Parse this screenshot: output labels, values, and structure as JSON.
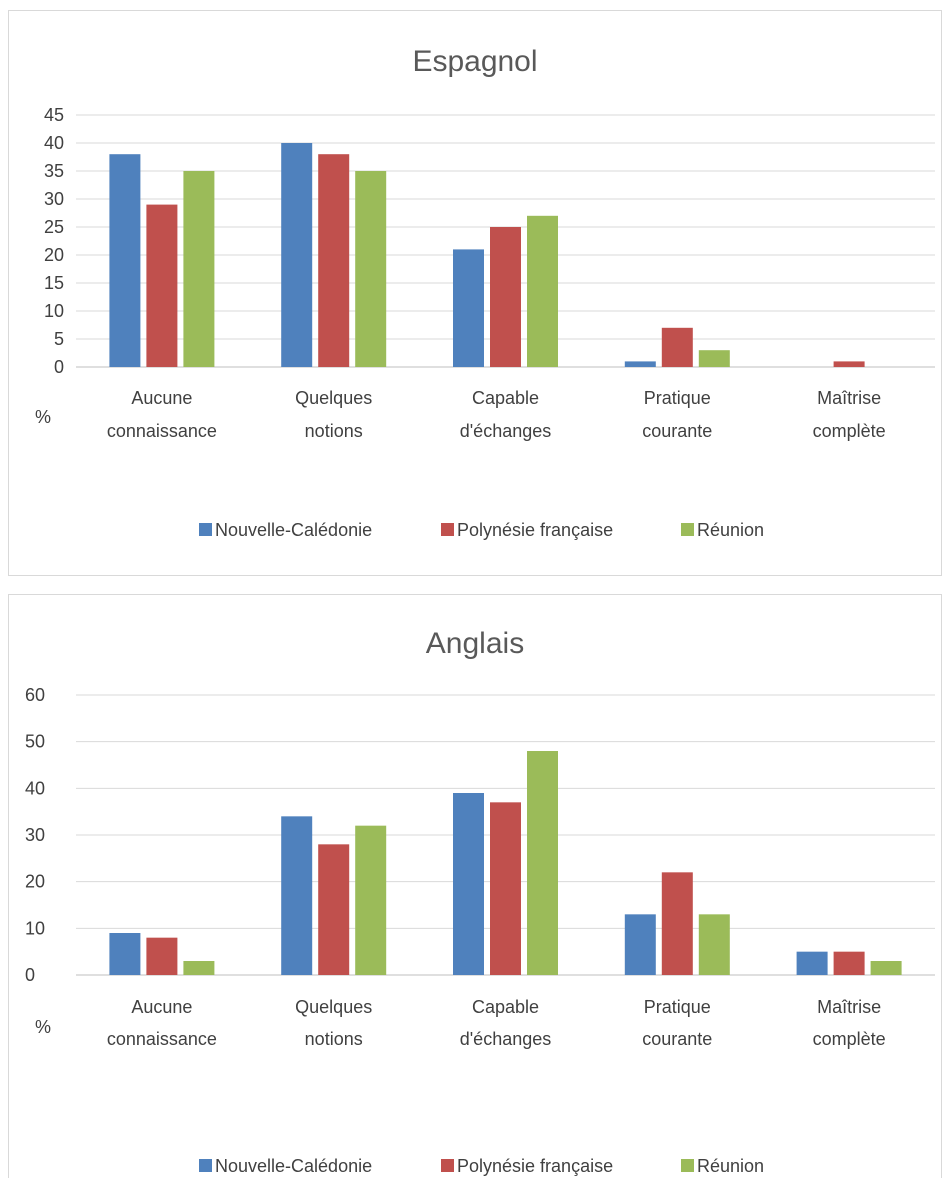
{
  "colors": {
    "series": [
      "#4f81bd",
      "#c0504d",
      "#9bbb59"
    ],
    "grid": "#d9d9d9",
    "axis": "#bfbfbf"
  },
  "chart_data": [
    {
      "type": "bar",
      "title": "Espagnol",
      "unit_label": "%",
      "categories": [
        [
          "Aucune",
          "connaissance"
        ],
        [
          "Quelques",
          "notions"
        ],
        [
          "Capable",
          "d'échanges"
        ],
        [
          "Pratique",
          "courante"
        ],
        [
          "Maîtrise",
          "complète"
        ]
      ],
      "series": [
        {
          "name": "Nouvelle-Calédonie",
          "values": [
            38,
            40,
            21,
            1,
            0
          ]
        },
        {
          "name": "Polynésie française",
          "values": [
            29,
            38,
            25,
            7,
            1
          ]
        },
        {
          "name": "Réunion",
          "values": [
            35,
            35,
            27,
            3,
            0
          ]
        }
      ],
      "ylim": [
        0,
        45
      ],
      "yticks": [
        0,
        5,
        10,
        15,
        20,
        25,
        30,
        35,
        40,
        45
      ],
      "grid": true,
      "legend": "bottom"
    },
    {
      "type": "bar",
      "title": "Anglais",
      "unit_label": "%",
      "categories": [
        [
          "Aucune",
          "connaissance"
        ],
        [
          "Quelques",
          "notions"
        ],
        [
          "Capable",
          "d'échanges"
        ],
        [
          "Pratique",
          "courante"
        ],
        [
          "Maîtrise",
          "complète"
        ]
      ],
      "series": [
        {
          "name": "Nouvelle-Calédonie",
          "values": [
            9,
            34,
            39,
            13,
            5
          ]
        },
        {
          "name": "Polynésie française",
          "values": [
            8,
            28,
            37,
            22,
            5
          ]
        },
        {
          "name": "Réunion",
          "values": [
            3,
            32,
            48,
            13,
            3
          ]
        }
      ],
      "ylim": [
        0,
        60
      ],
      "yticks": [
        0,
        10,
        20,
        30,
        40,
        50,
        60
      ],
      "grid": true,
      "legend": "bottom"
    }
  ]
}
